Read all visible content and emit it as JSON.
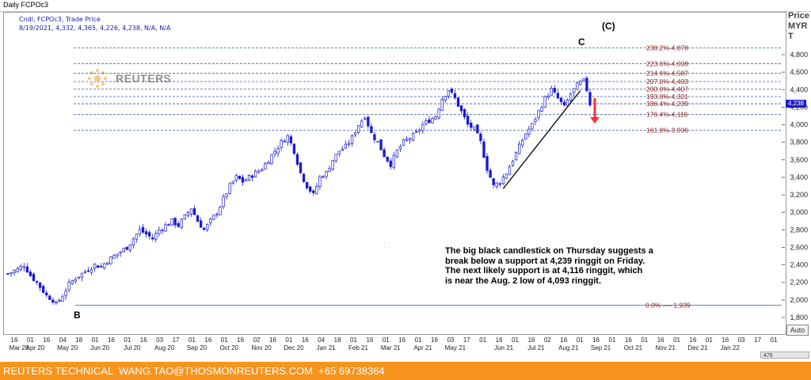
{
  "window": {
    "title": "Daily FCPOc3"
  },
  "info": {
    "line1": "Cndl, FCPOc3, Trade Price",
    "line2": "8/19/2021, 4,332, 4,365, 4,226, 4,238, N/A, N/A"
  },
  "watermark": {
    "text": "REUTERS"
  },
  "axis": {
    "price_label": "Price",
    "currency_label": "MYR",
    "unit_label": "T",
    "auto_button": "Auto",
    "last_price_box": "4,238",
    "scroll_label": "476"
  },
  "footer": {
    "text": "REUTERS TECHNICAL  WANG.TAO@THOSMONREUTERS.COM  +65 69738364"
  },
  "annotation": {
    "lines": [
      "The big black candlestick on Thursday suggests a",
      "break below a support at 4,239 ringgit on Friday.",
      "The next likely support is at 4,116 ringgit, which",
      "is near the Aug. 2 low of 4,093 ringgit."
    ]
  },
  "waves": {
    "b": "B",
    "c": "C",
    "big_c": "(C)"
  },
  "colors": {
    "up_candle": "#ffffff",
    "down_candle": "#1a1acc",
    "candle_outline": "#1a1acc",
    "fib_line": "#3a5ba8",
    "fib_label": "#8b1a1a",
    "arrow": "#ff3333",
    "footer_bg": "#f7941d"
  },
  "chart_data": {
    "type": "candlestick",
    "instrument": "FCPOc3",
    "ylim": [
      1700,
      4950
    ],
    "yticks": [
      1800,
      2000,
      2200,
      2400,
      2600,
      2800,
      3000,
      3200,
      3400,
      3600,
      3800,
      4000,
      4200,
      4400,
      4600,
      4800
    ],
    "ytick_labels": [
      "1,800",
      "2,000",
      "2,200",
      "2,400",
      "2,600",
      "2,800",
      "3,000",
      "3,200",
      "3,400",
      "3,600",
      "3,800",
      "4,000",
      "4,200",
      "4,400",
      "4,600",
      "4,800"
    ],
    "xticks": [
      {
        "day": "16",
        "month": "Mar 20"
      },
      {
        "day": "01",
        "month": "Apr 20"
      },
      {
        "day": "16",
        "month": ""
      },
      {
        "day": "04",
        "month": "May 20"
      },
      {
        "day": "18",
        "month": ""
      },
      {
        "day": "01",
        "month": "Jun 20"
      },
      {
        "day": "16",
        "month": ""
      },
      {
        "day": "01",
        "month": "Jul 20"
      },
      {
        "day": "16",
        "month": ""
      },
      {
        "day": "03",
        "month": "Aug 20"
      },
      {
        "day": "17",
        "month": ""
      },
      {
        "day": "01",
        "month": "Sep 20"
      },
      {
        "day": "16",
        "month": ""
      },
      {
        "day": "01",
        "month": "Oct 20"
      },
      {
        "day": "16",
        "month": ""
      },
      {
        "day": "02",
        "month": "Nov 20"
      },
      {
        "day": "16",
        "month": ""
      },
      {
        "day": "01",
        "month": "Dec 20"
      },
      {
        "day": "16",
        "month": ""
      },
      {
        "day": "04",
        "month": "Jan 21"
      },
      {
        "day": "18",
        "month": ""
      },
      {
        "day": "01",
        "month": "Feb 21"
      },
      {
        "day": "16",
        "month": ""
      },
      {
        "day": "01",
        "month": "Mar 21"
      },
      {
        "day": "16",
        "month": ""
      },
      {
        "day": "01",
        "month": "Apr 21"
      },
      {
        "day": "16",
        "month": ""
      },
      {
        "day": "03",
        "month": "May 21"
      },
      {
        "day": "17",
        "month": ""
      },
      {
        "day": "01",
        "month": ""
      },
      {
        "day": "16",
        "month": "Jun 21"
      },
      {
        "day": "01",
        "month": ""
      },
      {
        "day": "16",
        "month": "Jul 21"
      },
      {
        "day": "02",
        "month": ""
      },
      {
        "day": "16",
        "month": "Aug 21"
      },
      {
        "day": "01",
        "month": ""
      },
      {
        "day": "16",
        "month": "Sep 21"
      },
      {
        "day": "01",
        "month": ""
      },
      {
        "day": "16",
        "month": "Oct 21"
      },
      {
        "day": "01",
        "month": ""
      },
      {
        "day": "16",
        "month": "Nov 21"
      },
      {
        "day": "01",
        "month": ""
      },
      {
        "day": "16",
        "month": "Dec 21"
      },
      {
        "day": "01",
        "month": ""
      },
      {
        "day": "16",
        "month": "Jan 22"
      },
      {
        "day": "03",
        "month": ""
      },
      {
        "day": "17",
        "month": ""
      },
      {
        "day": "01",
        "month": ""
      }
    ],
    "fib_levels": [
      {
        "label": "238.2%",
        "value": 4878,
        "text": "4,878"
      },
      {
        "label": "223.6%",
        "value": 4698,
        "text": "4,698"
      },
      {
        "label": "214.6%",
        "value": 4587,
        "text": "4,587"
      },
      {
        "label": "207.0%",
        "value": 4493,
        "text": "4,493"
      },
      {
        "label": "200.0%",
        "value": 4407,
        "text": "4,407"
      },
      {
        "label": "193.0%",
        "value": 4321,
        "text": "4,321"
      },
      {
        "label": "186.4%",
        "value": 4239,
        "text": "4,239"
      },
      {
        "label": "176.4%",
        "value": 4116,
        "text": "4,116"
      },
      {
        "label": "161.8%",
        "value": 3936,
        "text": "3,936"
      },
      {
        "label": "0.0%",
        "value": 1939,
        "text": "1,939"
      }
    ],
    "trendline": {
      "from": {
        "date_index": 154,
        "price": 3270
      },
      "to": {
        "date_index": 178,
        "price": 4390
      }
    },
    "close_path": [
      [
        0,
        2300
      ],
      [
        3,
        2350
      ],
      [
        5,
        2400
      ],
      [
        7,
        2280
      ],
      [
        9,
        2200
      ],
      [
        12,
        2050
      ],
      [
        14,
        2000
      ],
      [
        15,
        1950
      ],
      [
        17,
        2050
      ],
      [
        19,
        2180
      ],
      [
        21,
        2250
      ],
      [
        23,
        2300
      ],
      [
        25,
        2350
      ],
      [
        27,
        2400
      ],
      [
        29,
        2380
      ],
      [
        31,
        2450
      ],
      [
        33,
        2500
      ],
      [
        35,
        2550
      ],
      [
        37,
        2600
      ],
      [
        39,
        2700
      ],
      [
        41,
        2800
      ],
      [
        43,
        2750
      ],
      [
        45,
        2700
      ],
      [
        47,
        2800
      ],
      [
        49,
        2850
      ],
      [
        51,
        2900
      ],
      [
        53,
        2850
      ],
      [
        55,
        2950
      ],
      [
        57,
        3050
      ],
      [
        59,
        2900
      ],
      [
        61,
        2800
      ],
      [
        63,
        2900
      ],
      [
        65,
        3000
      ],
      [
        67,
        3150
      ],
      [
        69,
        3300
      ],
      [
        71,
        3400
      ],
      [
        73,
        3350
      ],
      [
        75,
        3400
      ],
      [
        77,
        3450
      ],
      [
        79,
        3500
      ],
      [
        81,
        3600
      ],
      [
        83,
        3700
      ],
      [
        85,
        3800
      ],
      [
        87,
        3870
      ],
      [
        89,
        3700
      ],
      [
        91,
        3450
      ],
      [
        93,
        3300
      ],
      [
        95,
        3200
      ],
      [
        97,
        3400
      ],
      [
        99,
        3450
      ],
      [
        101,
        3600
      ],
      [
        103,
        3700
      ],
      [
        105,
        3750
      ],
      [
        107,
        3850
      ],
      [
        109,
        4000
      ],
      [
        111,
        4100
      ],
      [
        113,
        3900
      ],
      [
        115,
        3800
      ],
      [
        117,
        3650
      ],
      [
        119,
        3550
      ],
      [
        121,
        3700
      ],
      [
        123,
        3800
      ],
      [
        125,
        3850
      ],
      [
        127,
        3900
      ],
      [
        129,
        4000
      ],
      [
        131,
        4050
      ],
      [
        133,
        4100
      ],
      [
        135,
        4300
      ],
      [
        137,
        4400
      ],
      [
        139,
        4300
      ],
      [
        141,
        4150
      ],
      [
        143,
        4000
      ],
      [
        145,
        3950
      ],
      [
        147,
        3800
      ],
      [
        149,
        3500
      ],
      [
        151,
        3300
      ],
      [
        153,
        3350
      ],
      [
        155,
        3450
      ],
      [
        157,
        3600
      ],
      [
        159,
        3750
      ],
      [
        161,
        3900
      ],
      [
        163,
        4000
      ],
      [
        165,
        4150
      ],
      [
        167,
        4300
      ],
      [
        169,
        4400
      ],
      [
        171,
        4300
      ],
      [
        173,
        4200
      ],
      [
        175,
        4350
      ],
      [
        177,
        4450
      ],
      [
        179,
        4500
      ],
      [
        180,
        4400
      ],
      [
        181,
        4238
      ]
    ]
  }
}
